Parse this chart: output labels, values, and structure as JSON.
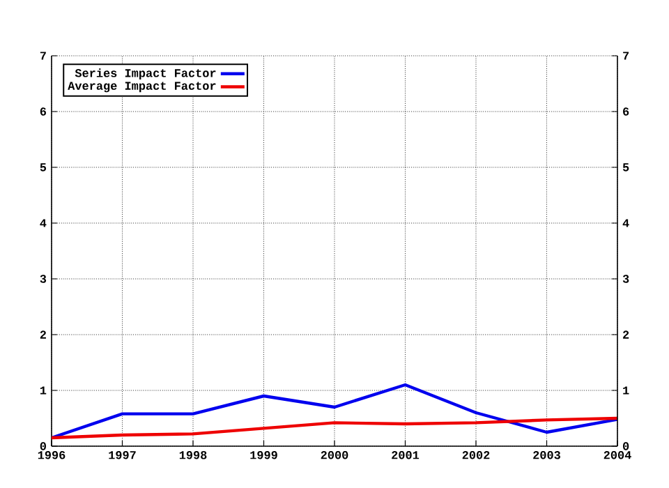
{
  "chart_data": {
    "type": "line",
    "x": [
      1996,
      1997,
      1998,
      1999,
      2000,
      2001,
      2002,
      2003,
      2004
    ],
    "series": [
      {
        "name": "Series Impact Factor",
        "color": "#0000ee",
        "values": [
          0.15,
          0.58,
          0.58,
          0.9,
          0.7,
          1.1,
          0.6,
          0.25,
          0.48
        ]
      },
      {
        "name": "Average Impact Factor",
        "color": "#ee0000",
        "values": [
          0.15,
          0.2,
          0.22,
          0.32,
          0.42,
          0.4,
          0.42,
          0.47,
          0.5
        ]
      }
    ],
    "xlim": [
      1996,
      2004
    ],
    "xticks": [
      1996,
      1997,
      1998,
      1999,
      2000,
      2001,
      2002,
      2003,
      2004
    ],
    "ylim": [
      0,
      7
    ],
    "yticks": [
      0,
      1,
      2,
      3,
      4,
      5,
      6,
      7
    ],
    "y2lim": [
      0,
      7
    ],
    "y2ticks": [
      0,
      1,
      2,
      3,
      4,
      5,
      6,
      7
    ],
    "grid": true,
    "legend": "top left",
    "line_style": "solid",
    "marker": "none"
  }
}
